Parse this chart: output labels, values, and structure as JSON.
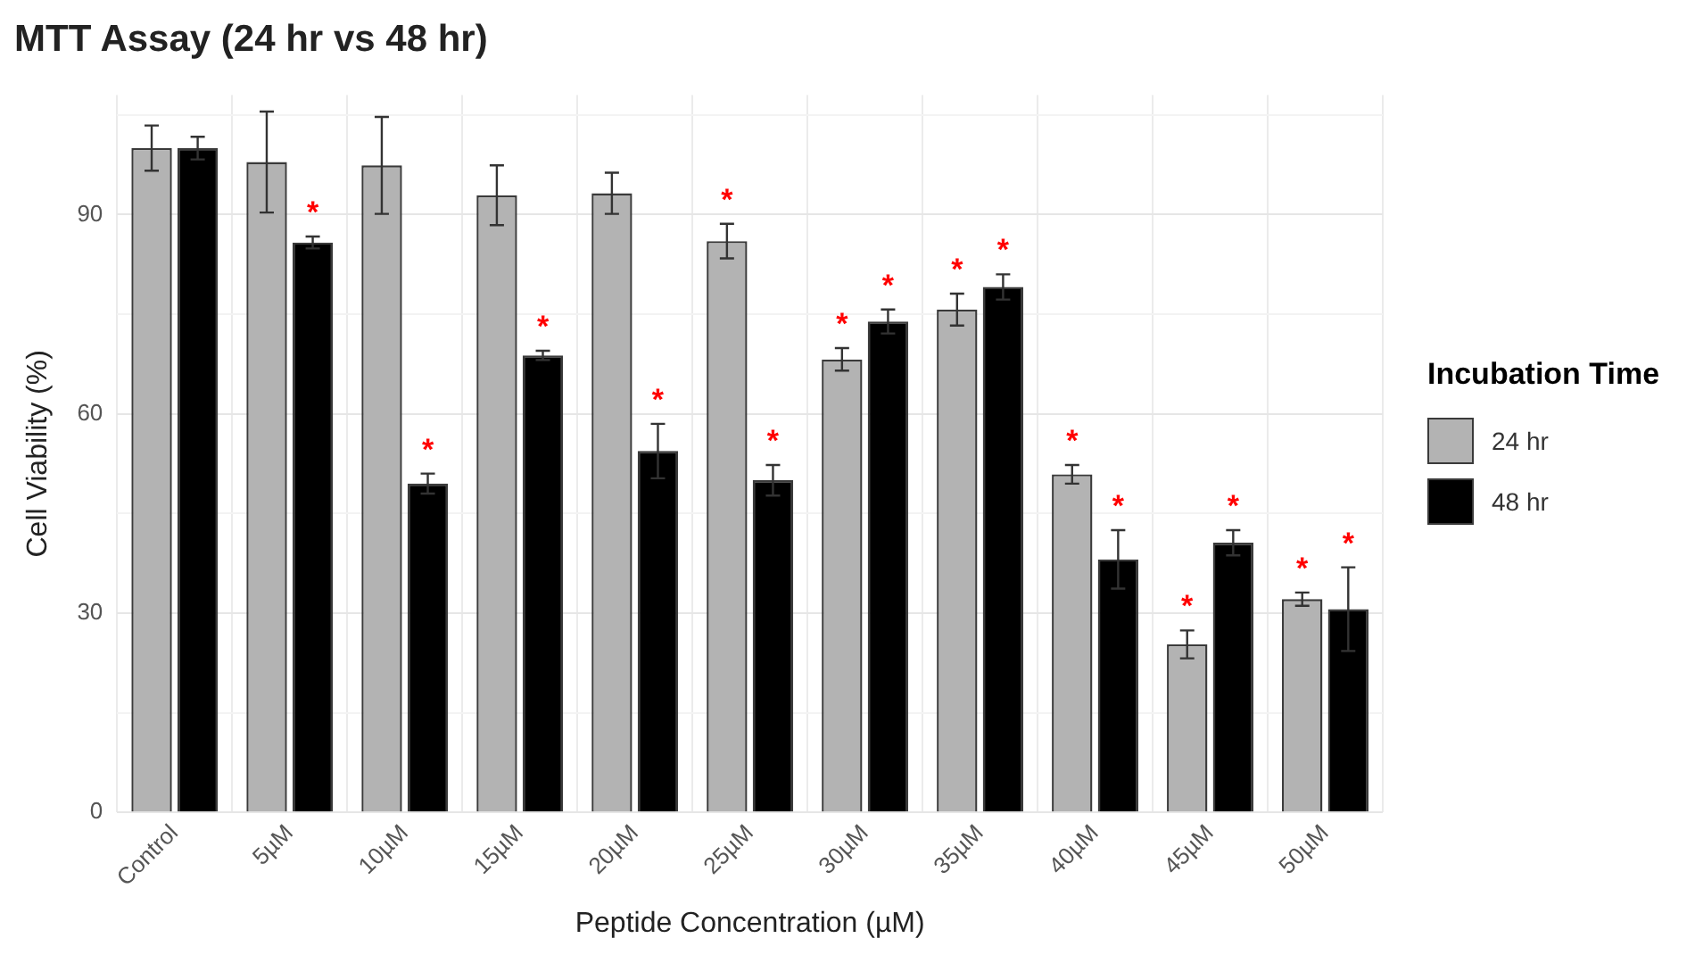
{
  "chart_data": {
    "type": "bar",
    "title": "MTT Assay (24 hr vs 48 hr)",
    "xlabel": "Peptide Concentration (µM)",
    "ylabel": "Cell Viability (%)",
    "legend_title": "Incubation Time",
    "categories": [
      "Control",
      "5µM",
      "10µM",
      "15µM",
      "20µM",
      "25µM",
      "30µM",
      "35µM",
      "40µM",
      "45µM",
      "50µM"
    ],
    "series": [
      {
        "name": "24 hr",
        "color": "#b3b3b3",
        "values": [
          100,
          97.9,
          97.4,
          92.9,
          93.2,
          86.0,
          68.2,
          75.7,
          50.9,
          25.3,
          32.1
        ],
        "errors": [
          3.4,
          7.6,
          7.3,
          4.5,
          3.1,
          2.6,
          1.7,
          2.4,
          1.4,
          2.1,
          1.0
        ],
        "value_labels": [
          null,
          null,
          null,
          null,
          null,
          "*",
          "*",
          "*",
          "*",
          "*",
          "*"
        ]
      },
      {
        "name": "48 hr",
        "color": "#000000",
        "values": [
          100,
          85.8,
          49.5,
          68.8,
          54.4,
          50.0,
          73.9,
          79.1,
          38.1,
          40.6,
          30.6
        ],
        "errors": [
          1.7,
          0.9,
          1.5,
          0.7,
          4.1,
          2.3,
          1.8,
          1.9,
          4.4,
          1.9,
          6.3
        ],
        "value_labels": [
          null,
          "*",
          "*",
          "*",
          "*",
          "*",
          "*",
          "*",
          "*",
          "*",
          "*"
        ]
      }
    ],
    "ylim": [
      0,
      108
    ],
    "yticks": [
      0,
      {
        "value": 15,
        "label": null
      },
      30,
      {
        "value": 45,
        "label": null
      },
      60,
      {
        "value": 75,
        "label": null
      },
      90,
      {
        "value": 105,
        "label": null
      }
    ],
    "grid": true,
    "legend": "right"
  }
}
